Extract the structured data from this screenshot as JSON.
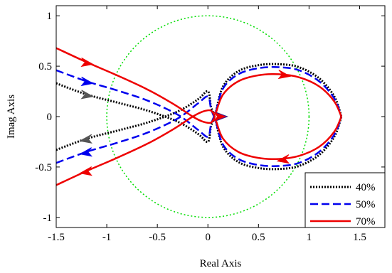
{
  "chart_data": {
    "type": "line",
    "title": "",
    "xlabel": "Real Axis",
    "ylabel": "Imag Axis",
    "xlim": [
      -1.5,
      1.75
    ],
    "ylim": [
      -1.1,
      1.1
    ],
    "xticks": [
      -1.5,
      -1,
      -0.5,
      0,
      0.5,
      1,
      1.5
    ],
    "xtick_labels": [
      "-1.5",
      "-1",
      "-0.5",
      "0",
      "0.5",
      "1",
      "1.5"
    ],
    "yticks": [
      -1,
      -0.5,
      0,
      0.5,
      1
    ],
    "ytick_labels": [
      "-1",
      "-0.5",
      "0",
      "0.5",
      "1"
    ],
    "grid": false,
    "legend_position": "bottom-right",
    "unit_circle": {
      "center": [
        0,
        0
      ],
      "radius": 1,
      "color": "#00dd00",
      "style": "dotted"
    },
    "series": [
      {
        "name": "40%",
        "color": "#000000",
        "style": "dotted",
        "arrow_color": "#555555",
        "outer": [
          [
            -1.5,
            0.33
          ],
          [
            -1.2,
            0.22
          ],
          [
            -0.9,
            0.14
          ],
          [
            -0.6,
            0.06
          ],
          [
            -0.3,
            -0.05
          ],
          [
            -0.1,
            -0.17
          ],
          [
            0.0,
            -0.25
          ],
          [
            0.03,
            -0.1
          ],
          [
            0.07,
            0.0
          ]
        ],
        "upper_lobe": [
          [
            0.08,
            0.05
          ],
          [
            0.15,
            0.3
          ],
          [
            0.3,
            0.45
          ],
          [
            0.5,
            0.51
          ],
          [
            0.7,
            0.52
          ],
          [
            0.9,
            0.49
          ],
          [
            1.1,
            0.38
          ],
          [
            1.25,
            0.2
          ],
          [
            1.32,
            0.0
          ]
        ],
        "arrows": [
          [
            -1.2,
            0.22,
            "in"
          ],
          [
            -1.2,
            -0.22,
            "out"
          ],
          [
            0.13,
            0.0,
            "in"
          ]
        ]
      },
      {
        "name": "50%",
        "color": "#0000ee",
        "style": "dashed",
        "arrow_color": "#0000ee",
        "outer": [
          [
            -1.5,
            0.46
          ],
          [
            -1.2,
            0.35
          ],
          [
            -0.9,
            0.26
          ],
          [
            -0.6,
            0.16
          ],
          [
            -0.3,
            0.02
          ],
          [
            -0.1,
            -0.13
          ],
          [
            0.0,
            -0.2
          ],
          [
            0.03,
            -0.08
          ],
          [
            0.06,
            0.0
          ]
        ],
        "upper_lobe": [
          [
            0.08,
            0.05
          ],
          [
            0.15,
            0.28
          ],
          [
            0.3,
            0.42
          ],
          [
            0.5,
            0.48
          ],
          [
            0.7,
            0.49
          ],
          [
            0.9,
            0.46
          ],
          [
            1.1,
            0.35
          ],
          [
            1.25,
            0.18
          ],
          [
            1.32,
            0.0
          ]
        ],
        "arrows": [
          [
            -1.2,
            0.35,
            "in"
          ],
          [
            -1.2,
            -0.35,
            "out"
          ],
          [
            0.12,
            0.0,
            "in"
          ]
        ]
      },
      {
        "name": "70%",
        "color": "#ee0000",
        "style": "solid",
        "arrow_color": "#ee0000",
        "outer": [
          [
            -1.5,
            0.68
          ],
          [
            -1.2,
            0.54
          ],
          [
            -0.9,
            0.41
          ],
          [
            -0.6,
            0.27
          ],
          [
            -0.35,
            0.13
          ],
          [
            -0.15,
            0.0
          ],
          [
            -0.05,
            -0.05
          ],
          [
            0.03,
            -0.06
          ],
          [
            0.07,
            0.0
          ]
        ],
        "upper_lobe": [
          [
            0.08,
            0.04
          ],
          [
            0.15,
            0.22
          ],
          [
            0.3,
            0.35
          ],
          [
            0.5,
            0.41
          ],
          [
            0.7,
            0.42
          ],
          [
            0.9,
            0.39
          ],
          [
            1.1,
            0.3
          ],
          [
            1.25,
            0.15
          ],
          [
            1.32,
            0.0
          ]
        ],
        "arrows": [
          [
            -1.2,
            0.54,
            "in"
          ],
          [
            -1.2,
            -0.54,
            "out"
          ],
          [
            0.75,
            0.42,
            "in"
          ],
          [
            0.75,
            -0.42,
            "out"
          ],
          [
            0.11,
            0.0,
            "in"
          ]
        ]
      }
    ]
  }
}
